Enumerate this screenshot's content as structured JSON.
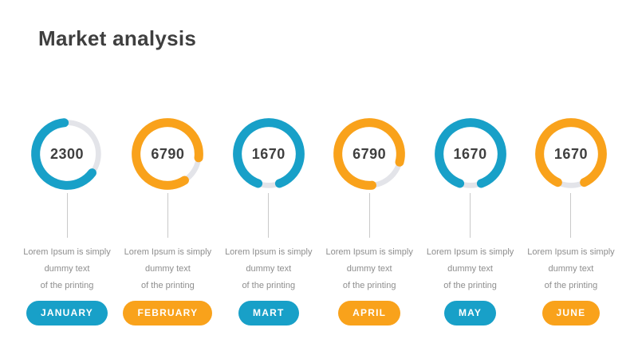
{
  "header": {
    "title": "Market analysis"
  },
  "colors": {
    "blue": "#18a0c8",
    "orange": "#f9a21b",
    "track": "#e3e4e9",
    "title_text": "#3f3f3f",
    "value_text": "#3f3f3f",
    "body_text": "#8e8e8e",
    "pill_text": "#ffffff",
    "connector": "#c9c9c9",
    "background": "#ffffff"
  },
  "chart_data": {
    "type": "donut-gauges",
    "title": "Market analysis",
    "legend": "none",
    "items": [
      {
        "month": "JANUARY",
        "value": "2300",
        "color": "#18a0c8",
        "arc_start_deg": 127,
        "arc_sweep_deg": 228,
        "desc": [
          "Lorem Ipsum is simply",
          "dummy text",
          "of the printing"
        ]
      },
      {
        "month": "FEBRUARY",
        "value": "6790",
        "color": "#f9a21b",
        "arc_start_deg": 147,
        "arc_sweep_deg": 310,
        "desc": [
          "Lorem Ipsum is simply",
          "dummy text",
          "of the printing"
        ]
      },
      {
        "month": "MART",
        "value": "1670",
        "color": "#18a0c8",
        "arc_start_deg": 200,
        "arc_sweep_deg": 320,
        "desc": [
          "Lorem Ipsum is simply",
          "dummy text",
          "of the printing"
        ]
      },
      {
        "month": "APRIL",
        "value": "6790",
        "color": "#f9a21b",
        "arc_start_deg": 175,
        "arc_sweep_deg": 290,
        "desc": [
          "Lorem Ipsum is simply",
          "dummy text",
          "of the printing"
        ]
      },
      {
        "month": "MAY",
        "value": "1670",
        "color": "#18a0c8",
        "arc_start_deg": 200,
        "arc_sweep_deg": 320,
        "desc": [
          "Lorem Ipsum is simply",
          "dummy text",
          "of the printing"
        ]
      },
      {
        "month": "JUNE",
        "value": "1670",
        "color": "#f9a21b",
        "arc_start_deg": 205,
        "arc_sweep_deg": 310,
        "desc": [
          "Lorem Ipsum is simply",
          "dummy text",
          "of the printing"
        ]
      }
    ]
  }
}
